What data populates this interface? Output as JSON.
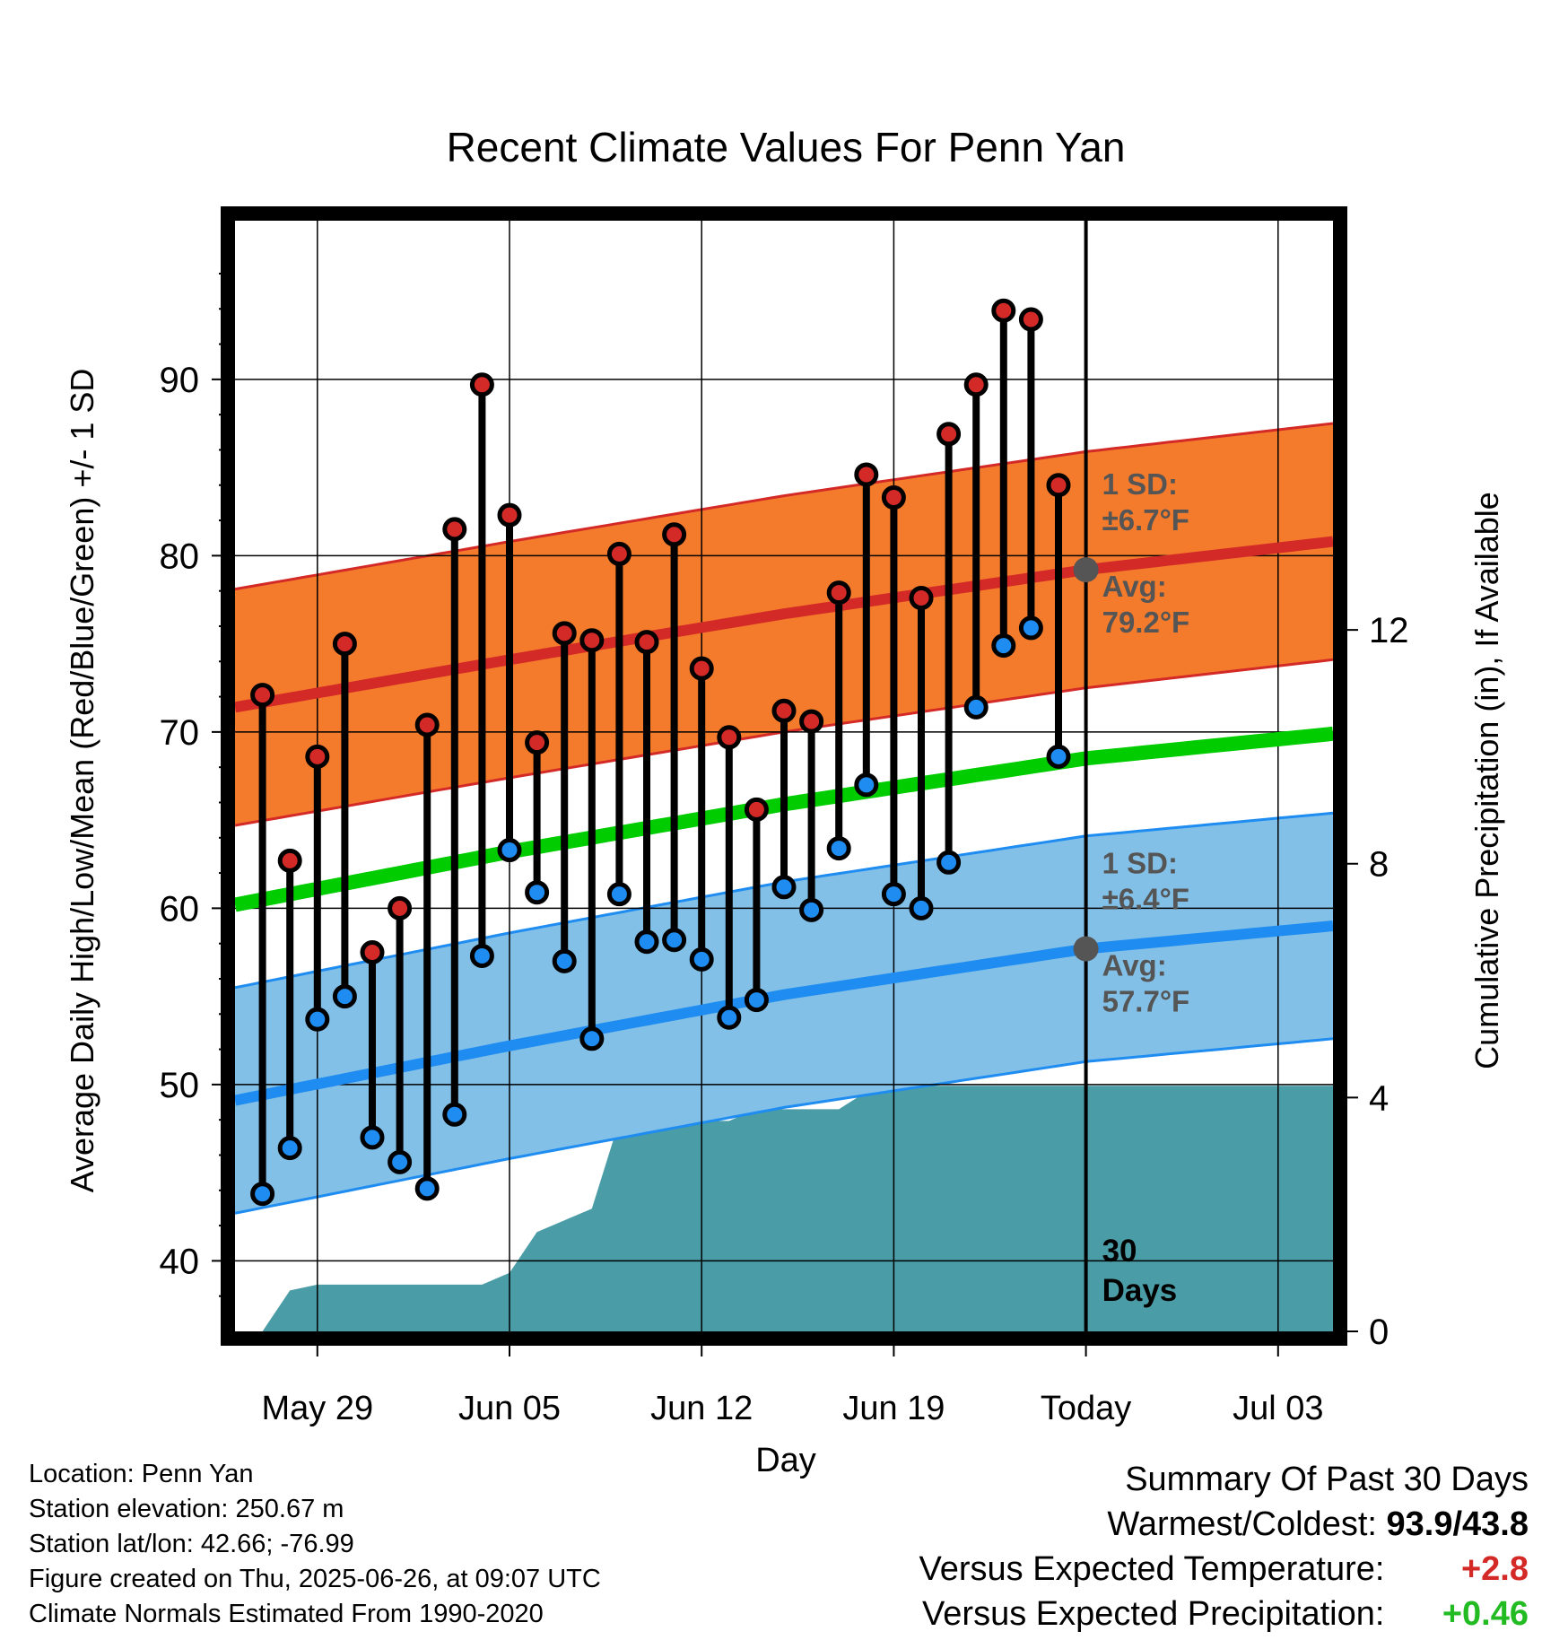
{
  "title": "Recent Climate Values For Penn Yan",
  "x_label": "Day",
  "y_label_left": "Average Daily High/Low/Mean (Red/Blue/Green) +/- 1 SD",
  "y_label_right": "Cumulative Precipitation (in), If Available",
  "x_ticks": [
    "May 29",
    "Jun 05",
    "Jun 12",
    "Jun 19",
    "Today",
    "Jul 03"
  ],
  "y_ticks_left": [
    "40",
    "50",
    "60",
    "70",
    "80",
    "90"
  ],
  "y_ticks_right": [
    "0",
    "4",
    "8",
    "12"
  ],
  "annotations": {
    "high_sd_line1": "1 SD:",
    "high_sd_line2": "±6.7°F",
    "high_avg_line1": "Avg:",
    "high_avg_line2": "79.2°F",
    "low_sd_line1": "1 SD:",
    "low_sd_line2": "±6.4°F",
    "low_avg_line1": "Avg:",
    "low_avg_line2": "57.7°F",
    "days_line1": "30",
    "days_line2": "Days"
  },
  "info": {
    "location": "Location: Penn Yan",
    "elevation": "Station elevation: 250.67 m",
    "latlon": "Station lat/lon: 42.66; -76.99",
    "created": "Figure created on Thu, 2025-06-26, at 09:07 UTC",
    "normals": "Climate Normals Estimated From 1990-2020"
  },
  "summary": {
    "heading": "Summary Of Past 30 Days",
    "warm_label": "Warmest/Coldest:",
    "warm_value": "93.9/43.8",
    "temp_label": "Versus Expected Temperature:",
    "temp_value": "+2.8",
    "precip_label": "Versus Expected Precipitation:",
    "precip_value": "+0.46"
  },
  "colors": {
    "high_band": "#f47b2c",
    "high_line": "#d42a27",
    "low_band": "#82c0e8",
    "low_line": "#1e8cf0",
    "mean_line": "#00cc00",
    "precip_fill": "#4a9ca6",
    "high_marker": "#d42a27",
    "low_marker": "#1e8cf0",
    "avg_marker": "#555555",
    "temp_value": "#d42a27",
    "precip_value": "#22bb22"
  },
  "chart_data": {
    "type": "line",
    "x_dates": [
      "May 27",
      "May 28",
      "May 29",
      "May 30",
      "May 31",
      "Jun 01",
      "Jun 02",
      "Jun 03",
      "Jun 04",
      "Jun 05",
      "Jun 06",
      "Jun 07",
      "Jun 08",
      "Jun 09",
      "Jun 10",
      "Jun 11",
      "Jun 12",
      "Jun 13",
      "Jun 14",
      "Jun 15",
      "Jun 16",
      "Jun 17",
      "Jun 18",
      "Jun 19",
      "Jun 20",
      "Jun 21",
      "Jun 22",
      "Jun 23",
      "Jun 24",
      "Jun 25"
    ],
    "x_range": [
      "May 26",
      "Jul 05"
    ],
    "today": "Jun 26",
    "ylim_temp": [
      36,
      99
    ],
    "ylim_precip": [
      0,
      19
    ],
    "daily_high": [
      72.1,
      62.7,
      68.6,
      75.0,
      57.5,
      60.0,
      70.4,
      81.5,
      89.7,
      82.3,
      69.4,
      75.6,
      75.2,
      80.1,
      75.1,
      81.2,
      73.6,
      69.7,
      65.6,
      71.2,
      70.6,
      77.9,
      84.6,
      83.3,
      77.6,
      86.9,
      89.7,
      93.9,
      93.4,
      84.0
    ],
    "daily_low": [
      43.8,
      46.4,
      53.7,
      55.0,
      47.0,
      45.6,
      44.1,
      48.3,
      57.3,
      63.3,
      60.9,
      57.0,
      52.6,
      60.8,
      58.1,
      58.2,
      57.1,
      53.8,
      54.8,
      61.2,
      59.9,
      63.4,
      67.0,
      60.8,
      60.0,
      62.6,
      71.4,
      74.9,
      75.9,
      68.6
    ],
    "normal_high": {
      "dates": [
        "May 26",
        "Jun 05",
        "Jun 15",
        "Jun 26",
        "Jul 05"
      ],
      "values": [
        71.4,
        74.1,
        76.7,
        79.2,
        80.8
      ]
    },
    "normal_low": {
      "dates": [
        "May 26",
        "Jun 05",
        "Jun 15",
        "Jun 26",
        "Jul 05"
      ],
      "values": [
        49.1,
        52.2,
        55.1,
        57.7,
        59.0
      ]
    },
    "normal_mean": {
      "dates": [
        "May 26",
        "Jun 05",
        "Jun 15",
        "Jun 26",
        "Jul 05"
      ],
      "values": [
        60.2,
        63.2,
        65.9,
        68.5,
        69.9
      ]
    },
    "high_sd": 6.7,
    "low_sd": 6.4,
    "cumulative_precip": {
      "dates": [
        "May 27",
        "May 28",
        "May 29",
        "Jun 01",
        "Jun 04",
        "Jun 05",
        "Jun 06",
        "Jun 07",
        "Jun 08",
        "Jun 09",
        "Jun 10",
        "Jun 12",
        "Jun 13",
        "Jun 14",
        "Jun 15",
        "Jun 17",
        "Jun 18",
        "Jun 19",
        "Jun 26",
        "Jul 05"
      ],
      "values": [
        0.0,
        0.7,
        0.8,
        0.8,
        0.8,
        1.0,
        1.7,
        1.9,
        2.1,
        3.6,
        3.6,
        3.6,
        3.6,
        3.8,
        3.8,
        3.8,
        4.1,
        4.2,
        4.2,
        4.2
      ]
    }
  }
}
